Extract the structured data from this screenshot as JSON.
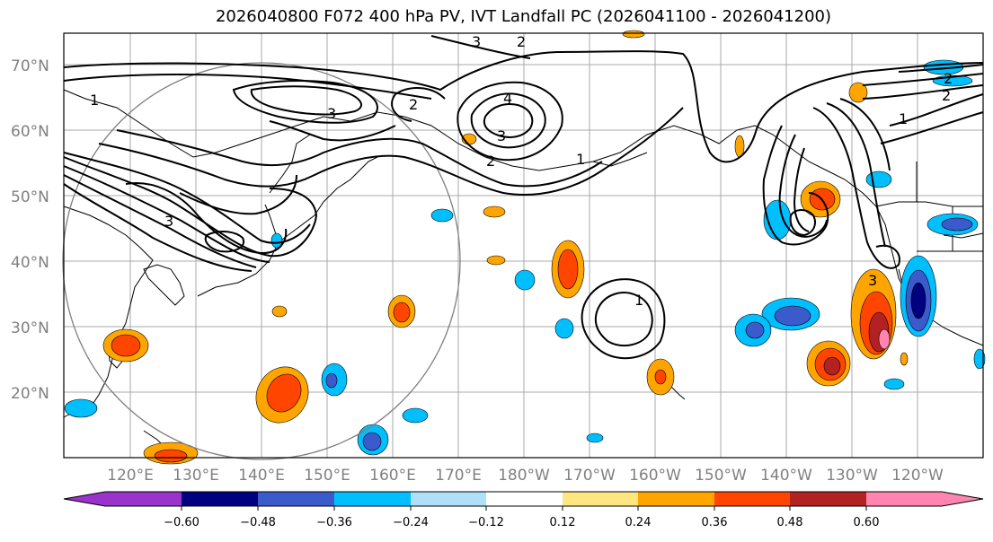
{
  "title": "2026040800 F072 400 hPa PV, IVT Landfall PC (2026041100 - 2026041200)",
  "map": {
    "lat_labels": [
      "70°N",
      "60°N",
      "50°N",
      "40°N",
      "30°N",
      "20°N"
    ],
    "lon_labels": [
      "120°E",
      "130°E",
      "140°E",
      "150°E",
      "160°E",
      "170°E",
      "180°W",
      "170°W",
      "160°W",
      "150°W",
      "140°W",
      "130°W",
      "120°W"
    ],
    "contour_labels": [
      "1",
      "3",
      "2",
      "3",
      "4",
      "3",
      "2",
      "2",
      "1",
      "3",
      "2",
      "2",
      "1",
      "1",
      "3"
    ]
  },
  "colorbar": {
    "colors": [
      "#9933cc",
      "#000080",
      "#3b5bcc",
      "#00bfff",
      "#aee0fa",
      "#ffffff",
      "#ffe680",
      "#ffa500",
      "#ff4500",
      "#b22222",
      "#ff85b0"
    ],
    "ticks": [
      "−0.60",
      "−0.48",
      "−0.36",
      "−0.24",
      "−0.12",
      "0.12",
      "0.24",
      "0.36",
      "0.48",
      "0.60"
    ]
  }
}
